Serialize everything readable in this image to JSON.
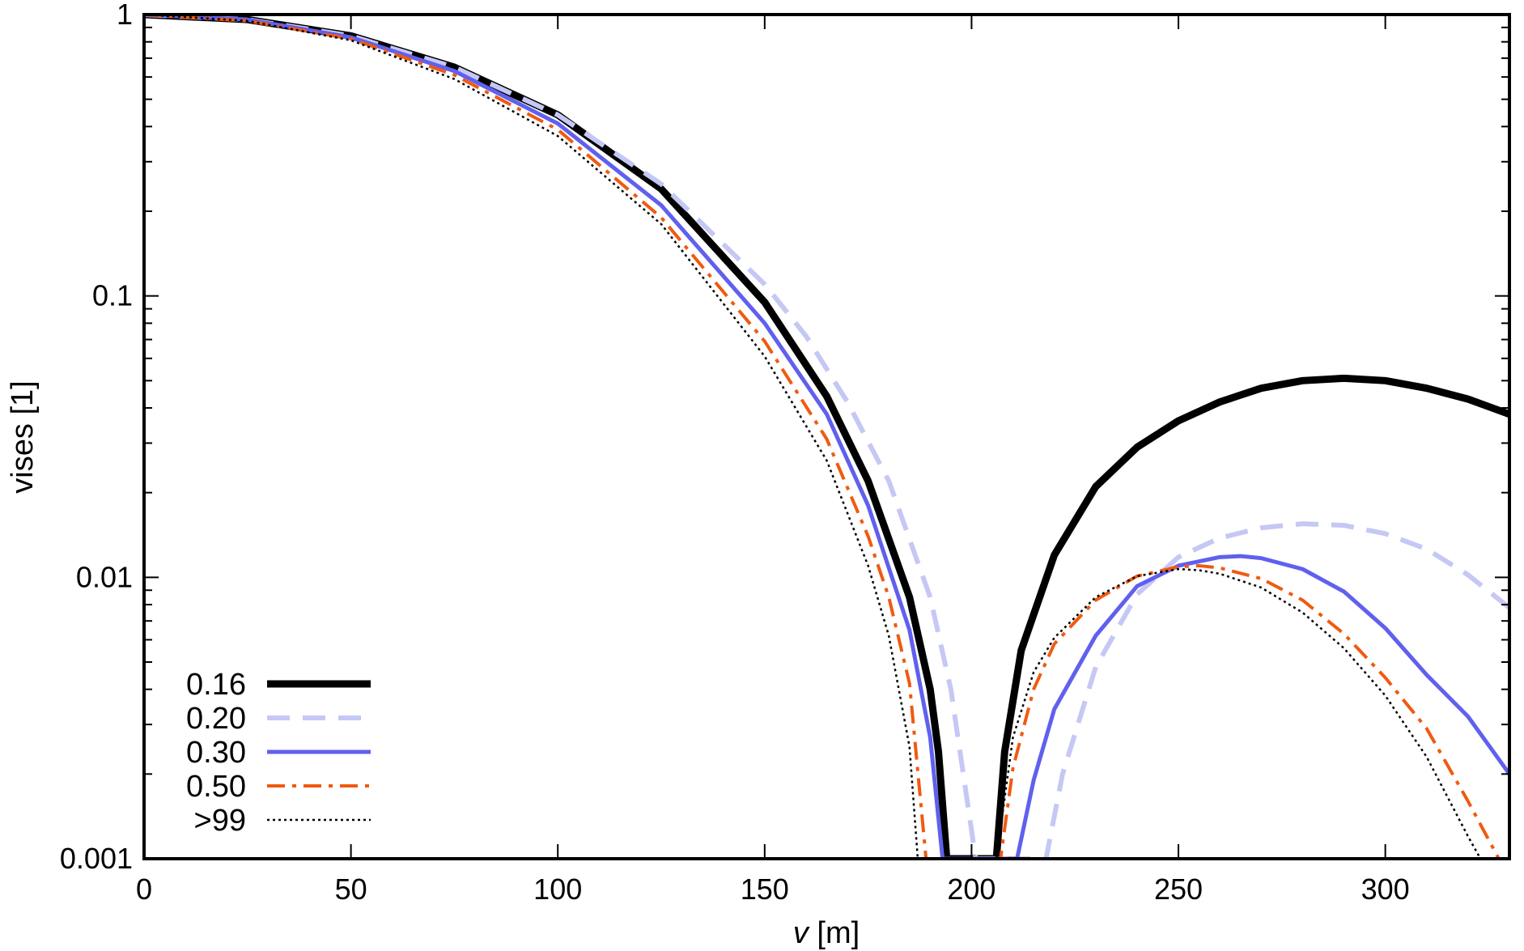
{
  "chart_data": {
    "type": "line",
    "xlabel_italic": "v",
    "xlabel_unit": " [m]",
    "ylabel": "vises [1]",
    "xlim": [
      0,
      330
    ],
    "ylim": [
      0.001,
      1
    ],
    "y_scale": "log",
    "x_ticks": [
      0,
      50,
      100,
      150,
      200,
      250,
      300
    ],
    "x_tick_labels": [
      "0",
      "50",
      "100",
      "150",
      "200",
      "250",
      "300"
    ],
    "y_ticks": [
      0.001,
      0.01,
      0.1,
      1
    ],
    "y_tick_labels": [
      "0.001",
      "0.01",
      "0.1",
      "1"
    ],
    "grid": false,
    "legend_position": "bottom-left",
    "series": [
      {
        "name": "0.16",
        "color": "#000000",
        "style": "solid-thick",
        "x": [
          0,
          25,
          50,
          75,
          100,
          125,
          150,
          165,
          175,
          185,
          190,
          192,
          194,
          206,
          208,
          212,
          220,
          230,
          240,
          250,
          260,
          270,
          280,
          290,
          300,
          310,
          320,
          330
        ],
        "y": [
          1,
          0.96,
          0.84,
          0.65,
          0.44,
          0.24,
          0.095,
          0.044,
          0.022,
          0.0085,
          0.004,
          0.0024,
          0.001,
          0.001,
          0.0024,
          0.0055,
          0.012,
          0.021,
          0.029,
          0.036,
          0.042,
          0.047,
          0.05,
          0.051,
          0.05,
          0.047,
          0.043,
          0.038
        ]
      },
      {
        "name": "0.20",
        "color": "#c5c8f4",
        "style": "dashed",
        "x": [
          0,
          25,
          50,
          75,
          100,
          125,
          150,
          160,
          170,
          180,
          190,
          195,
          198,
          201,
          218,
          222,
          230,
          240,
          250,
          260,
          270,
          280,
          290,
          300,
          310,
          320,
          330
        ],
        "y": [
          1,
          0.96,
          0.84,
          0.65,
          0.44,
          0.25,
          0.11,
          0.072,
          0.042,
          0.022,
          0.0085,
          0.004,
          0.002,
          0.001,
          0.001,
          0.002,
          0.0048,
          0.0087,
          0.0118,
          0.0138,
          0.015,
          0.0155,
          0.0153,
          0.0143,
          0.0126,
          0.0102,
          0.0078
        ]
      },
      {
        "name": "0.30",
        "color": "#6060ee",
        "style": "solid",
        "x": [
          0,
          25,
          50,
          75,
          100,
          125,
          150,
          165,
          175,
          185,
          190,
          193,
          211,
          215,
          220,
          230,
          240,
          250,
          260,
          265,
          270,
          280,
          290,
          300,
          310,
          320,
          330
        ],
        "y": [
          1,
          0.96,
          0.83,
          0.63,
          0.41,
          0.21,
          0.08,
          0.038,
          0.018,
          0.0065,
          0.0027,
          0.001,
          0.001,
          0.0019,
          0.0034,
          0.0062,
          0.0093,
          0.011,
          0.0118,
          0.0119,
          0.0117,
          0.0107,
          0.0089,
          0.0066,
          0.0045,
          0.0032,
          0.002
        ]
      },
      {
        "name": "0.50",
        "color": "#f05a10",
        "style": "dash-dot",
        "x": [
          0,
          25,
          50,
          75,
          100,
          125,
          150,
          165,
          175,
          180,
          185,
          189,
          207,
          210,
          215,
          220,
          230,
          240,
          250,
          255,
          260,
          270,
          280,
          290,
          300,
          310,
          320,
          330
        ],
        "y": [
          1,
          0.95,
          0.82,
          0.61,
          0.39,
          0.19,
          0.069,
          0.031,
          0.014,
          0.0085,
          0.0042,
          0.001,
          0.001,
          0.0021,
          0.004,
          0.0058,
          0.0083,
          0.0101,
          0.0109,
          0.011,
          0.0108,
          0.0099,
          0.0083,
          0.0063,
          0.0044,
          0.0029,
          0.0016,
          0.00085
        ]
      },
      {
        "name": ">99",
        "color": "#000000",
        "style": "dotted",
        "x": [
          0,
          25,
          50,
          75,
          100,
          125,
          150,
          165,
          175,
          180,
          185,
          187,
          206,
          210,
          215,
          220,
          230,
          240,
          250,
          255,
          260,
          270,
          280,
          290,
          300,
          310,
          320,
          323
        ],
        "y": [
          1,
          0.95,
          0.81,
          0.59,
          0.37,
          0.18,
          0.061,
          0.026,
          0.011,
          0.0062,
          0.0025,
          0.001,
          0.001,
          0.0027,
          0.0046,
          0.0061,
          0.0085,
          0.0101,
          0.0107,
          0.0106,
          0.0103,
          0.0092,
          0.0075,
          0.0056,
          0.0038,
          0.0023,
          0.0012,
          0.001
        ]
      }
    ]
  }
}
